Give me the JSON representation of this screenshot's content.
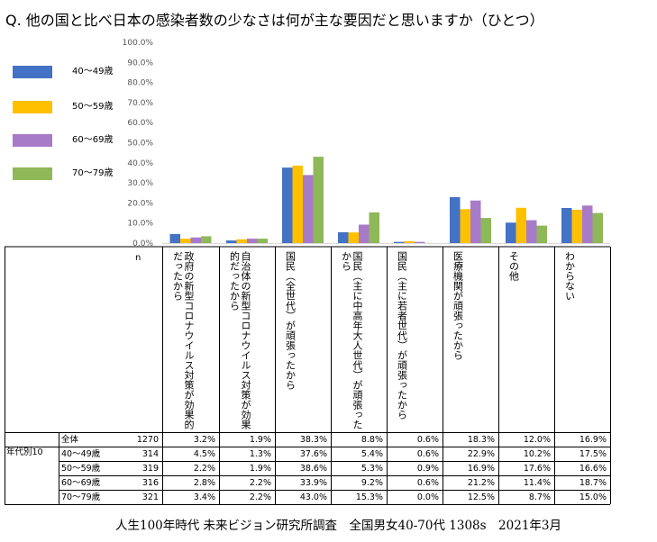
{
  "title": "Q. 他の国と比べ日本の感染者数の少なさは何が主な要因だと思いますか（ひとつ）",
  "footer": "人生100年時代 未来ビジョン研究所調査　全国男女40-70代 1308s　2021年3月",
  "table": {
    "n_header": "n",
    "group_label": "年代別10",
    "columns": [
      "政府の新型コロナウイルス対策が効果的だったから",
      "自治体の新型コロナウイルス対策が効果的だったから",
      "国民（全世代）が頑張ったから",
      "国民（主に中高年大人世代）が頑張ったから",
      "国民（主に若者世代）が頑張ったから",
      "医療機関が頑張ったから",
      "その他",
      "わからない"
    ],
    "rows": [
      {
        "label": "全体",
        "n": "1270",
        "values": [
          "3.2%",
          "1.9%",
          "38.3%",
          "8.8%",
          "0.6%",
          "18.3%",
          "12.0%",
          "16.9%"
        ]
      },
      {
        "label": "40〜49歳",
        "n": "314",
        "values": [
          "4.5%",
          "1.3%",
          "37.6%",
          "5.4%",
          "0.6%",
          "22.9%",
          "10.2%",
          "17.5%"
        ]
      },
      {
        "label": "50〜59歳",
        "n": "319",
        "values": [
          "2.2%",
          "1.9%",
          "38.6%",
          "5.3%",
          "0.9%",
          "16.9%",
          "17.6%",
          "16.6%"
        ]
      },
      {
        "label": "60〜69歳",
        "n": "316",
        "values": [
          "2.8%",
          "2.2%",
          "33.9%",
          "9.2%",
          "0.6%",
          "21.2%",
          "11.4%",
          "18.7%"
        ]
      },
      {
        "label": "70〜79歳",
        "n": "321",
        "values": [
          "3.4%",
          "2.2%",
          "43.0%",
          "15.3%",
          "0.0%",
          "12.5%",
          "8.7%",
          "15.0%"
        ]
      }
    ]
  },
  "chart_data": {
    "type": "bar",
    "title": "Q. 他の国と比べ日本の感染者数の少なさは何が主な要因だと思いますか（ひとつ）",
    "categories": [
      "政府の新型コロナウイルス対策が効果的だったから",
      "自治体の新型コロナウイルス対策が効果的だったから",
      "国民（全世代）が頑張ったから",
      "国民（主に中高年大人世代）が頑張ったから",
      "国民（主に若者世代）が頑張ったから",
      "医療機関が頑張ったから",
      "その他",
      "わからない"
    ],
    "series": [
      {
        "name": "40～49歳",
        "color": "#4472C4",
        "values": [
          4.5,
          1.3,
          37.6,
          5.4,
          0.6,
          22.9,
          10.2,
          17.5
        ]
      },
      {
        "name": "50～59歳",
        "color": "#FFC000",
        "values": [
          2.2,
          1.9,
          38.6,
          5.3,
          0.9,
          16.9,
          17.6,
          16.6
        ]
      },
      {
        "name": "60～69歳",
        "color": "#A87BC9",
        "values": [
          2.8,
          2.2,
          33.9,
          9.2,
          0.6,
          21.2,
          11.4,
          18.7
        ]
      },
      {
        "name": "70～79歳",
        "color": "#8FB858",
        "values": [
          3.4,
          2.2,
          43.0,
          15.3,
          0.0,
          12.5,
          8.7,
          15.0
        ]
      }
    ],
    "yticks": [
      "0.0%",
      "10.0%",
      "20.0%",
      "30.0%",
      "40.0%",
      "50.0%",
      "60.0%",
      "70.0%",
      "80.0%",
      "90.0%",
      "100.0%"
    ],
    "ylim": [
      0,
      100
    ],
    "legend": "left",
    "grid": false
  }
}
